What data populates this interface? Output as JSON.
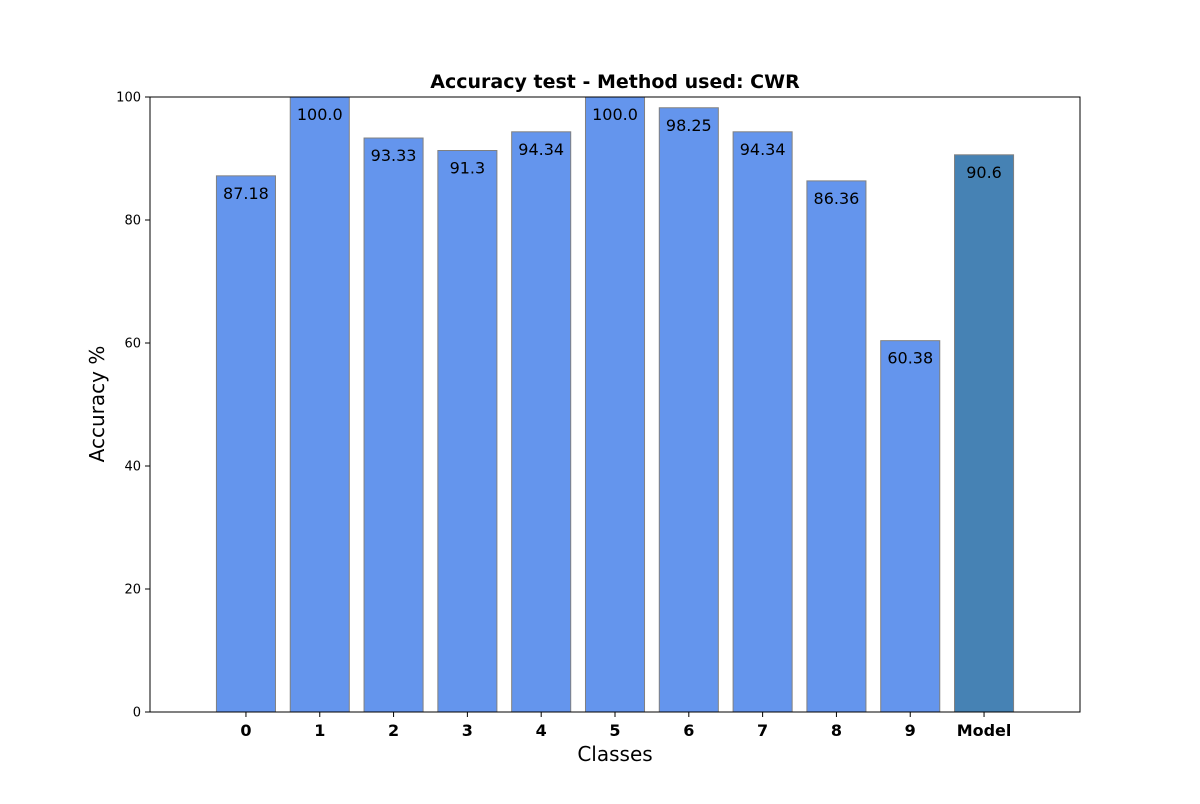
{
  "chart_data": {
    "type": "bar",
    "title": "Accuracy test - Method used: CWR",
    "xlabel": "Classes",
    "ylabel": "Accuracy %",
    "categories": [
      "0",
      "1",
      "2",
      "3",
      "4",
      "5",
      "6",
      "7",
      "8",
      "9",
      "Model"
    ],
    "values": [
      87.18,
      100.0,
      93.33,
      91.3,
      94.34,
      100.0,
      98.25,
      94.34,
      86.36,
      60.38,
      90.6
    ],
    "value_labels": [
      "87.18",
      "100.0",
      "93.33",
      "91.3",
      "94.34",
      "100.0",
      "98.25",
      "94.34",
      "86.36",
      "60.38",
      "90.6"
    ],
    "ylim": [
      0,
      100
    ],
    "yticks": [
      0,
      20,
      40,
      60,
      80,
      100
    ],
    "ytick_labels": [
      "0",
      "20",
      "40",
      "60",
      "80",
      "100"
    ],
    "grid": false,
    "colors": {
      "class_bar": "#6495ED",
      "model_bar": "#4682B4",
      "bar_edge": "#808080"
    }
  }
}
